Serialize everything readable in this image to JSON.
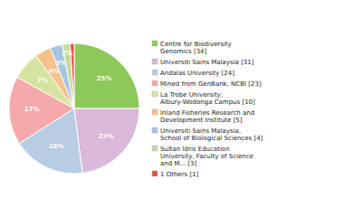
{
  "chart_data": {
    "type": "pie",
    "categories": [
      "Centre for Biodiversity\nGenomics [34]",
      "Universiti Sains Malaysia [31]",
      "Andalas University [24]",
      "Mined from GenBank, NCBI [23]",
      "La Trobe University,\nAlbury-Wodonga Campus [10]",
      "Inland Fisheries Research and\nDevelopment Institute [5]",
      "Universiti Sains Malaysia,\nSchool of Biological Sciences [4]",
      "Sultan Idris Education\nUniversity, Faculty of Science\nand M... [3]",
      "1 Others [1]"
    ],
    "values": [
      25,
      23,
      18,
      17,
      7,
      4,
      3,
      2,
      1
    ],
    "value_labels": [
      "25%",
      "23%",
      "18%",
      "17%",
      "7%",
      "4%",
      "3%",
      "2%",
      null
    ],
    "colors": [
      "#8dc85a",
      "#d9b8d9",
      "#b8cce4",
      "#f4aaaa",
      "#d4e4a0",
      "#f5c18c",
      "#a8c4e0",
      "#c5dba0",
      "#e05050"
    ],
    "data_labels": true,
    "legend": "right"
  }
}
